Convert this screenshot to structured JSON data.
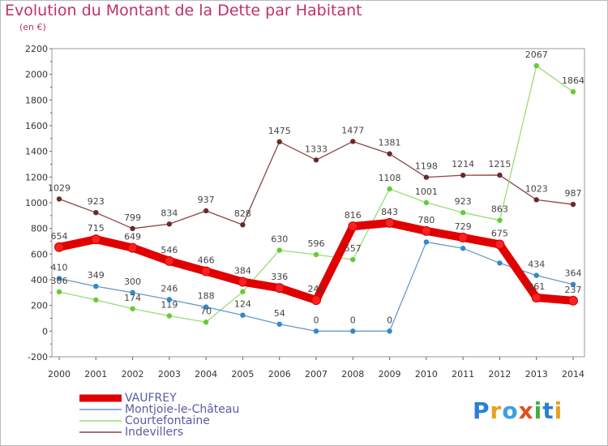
{
  "title": "Evolution du Montant de la Dette par Habitant",
  "subtitle": "(en €)",
  "logo": "Proxiti",
  "colors": {
    "title": "#c0306a",
    "axis_text": "#333333",
    "label_text": "#444444",
    "legend_text": "#5a5aa8",
    "frame": "#999999",
    "grid": "#dddddd"
  },
  "chart_data": {
    "type": "line",
    "title": "Evolution du Montant de la Dette par Habitant",
    "subtitle": "(en €)",
    "xlabel": "",
    "ylabel": "",
    "x": [
      "2000",
      "2001",
      "2002",
      "2003",
      "2004",
      "2005",
      "2006",
      "2007",
      "2008",
      "2009",
      "2010",
      "2011",
      "2012",
      "2013",
      "2014"
    ],
    "ylim": [
      -200,
      2200
    ],
    "yticks": [
      -200,
      0,
      200,
      400,
      600,
      800,
      1000,
      1200,
      1400,
      1600,
      1800,
      2000,
      2200
    ],
    "grid": false,
    "legend_position": "bottom-left",
    "series": [
      {
        "name": "VAUFREY",
        "color": "#e00000",
        "values": [
          654,
          715,
          649,
          546,
          466,
          384,
          336,
          241,
          816,
          843,
          780,
          729,
          675,
          261,
          237
        ],
        "labels": [
          "654",
          "715",
          "649",
          "546",
          "466",
          "384",
          "336",
          "241",
          "816",
          "843",
          "780",
          "729",
          "675",
          "261",
          "237"
        ]
      },
      {
        "name": "Montjoie-le-Château",
        "color": "#6699cc",
        "marker": "#3388cc",
        "values": [
          410,
          349,
          300,
          246,
          188,
          124,
          54,
          0,
          0,
          0,
          694,
          645,
          530,
          434,
          364
        ],
        "labels": [
          "410",
          "349",
          "300",
          "246",
          "188",
          "124",
          "54",
          "0",
          "0",
          "0",
          "",
          "",
          "",
          "434",
          "364"
        ]
      },
      {
        "name": "Courtefontaine",
        "color": "#99dd77",
        "marker": "#66cc33",
        "values": [
          306,
          243,
          174,
          119,
          70,
          307,
          630,
          596,
          557,
          1108,
          1001,
          923,
          863,
          2067,
          1864
        ],
        "labels": [
          "306",
          "",
          "174",
          "119",
          "70",
          "",
          "630",
          "596",
          "557",
          "1108",
          "1001",
          "923",
          "863",
          "2067",
          "1864"
        ]
      },
      {
        "name": "Indevillers",
        "color": "#884444",
        "marker": "#6a2a2a",
        "values": [
          1029,
          923,
          799,
          834,
          937,
          828,
          1475,
          1333,
          1477,
          1381,
          1198,
          1214,
          1215,
          1023,
          987
        ],
        "labels": [
          "1029",
          "923",
          "799",
          "834",
          "937",
          "828",
          "1475",
          "1333",
          "1477",
          "1381",
          "1198",
          "1214",
          "1215",
          "1023",
          "987"
        ]
      }
    ]
  }
}
